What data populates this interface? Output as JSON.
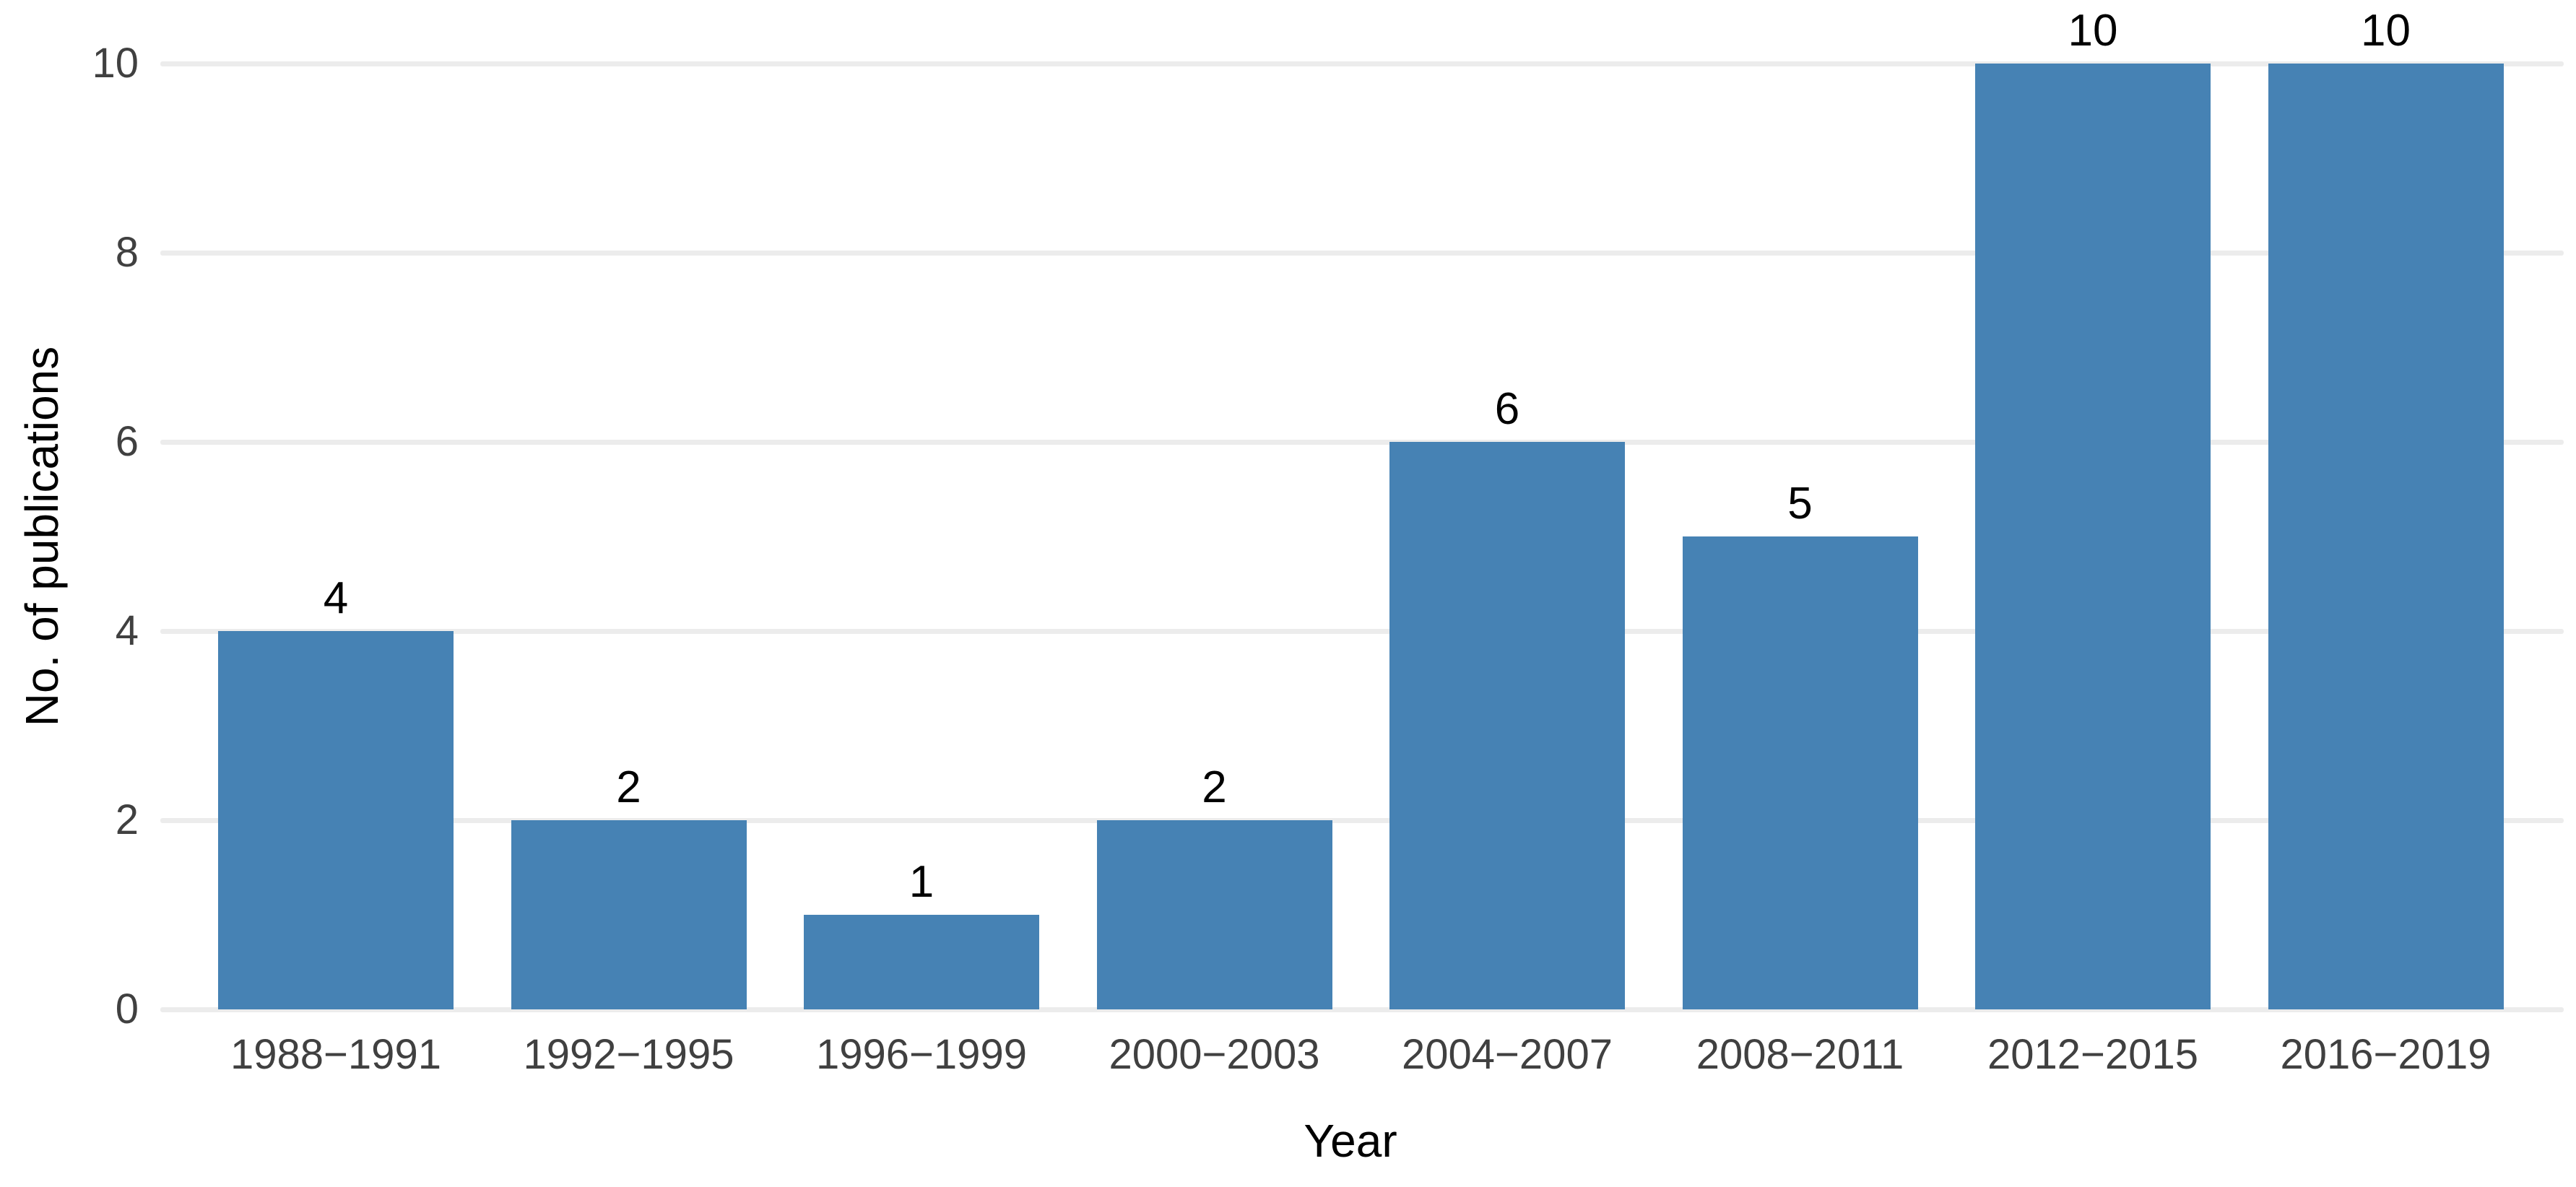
{
  "chart_data": {
    "type": "bar",
    "title": "",
    "categories": [
      "1988−1991",
      "1992−1995",
      "1996−1999",
      "2000−2003",
      "2004−2007",
      "2008−2011",
      "2012−2015",
      "2016−2019"
    ],
    "values": [
      4,
      2,
      1,
      2,
      6,
      5,
      10,
      10
    ],
    "value_labels": [
      "4",
      "2",
      "1",
      "2",
      "6",
      "5",
      "10",
      "10"
    ],
    "xlabel": "Year",
    "ylabel": "No. of publications",
    "ylim": [
      0,
      10
    ],
    "yticks": [
      0,
      2,
      4,
      6,
      8,
      10
    ],
    "legend": "none",
    "grid": "horizontal major gridlines only",
    "colors": {
      "bar_fill": "#4682B4",
      "gridline": "#ECECEC",
      "tick_label": "#404040",
      "axis_title": "#000000",
      "background": "#FFFFFF"
    }
  }
}
